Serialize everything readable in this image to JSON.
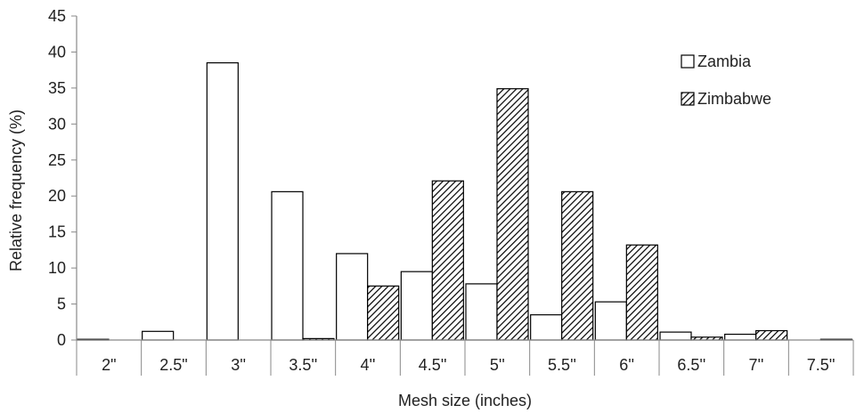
{
  "chart_data": {
    "type": "bar",
    "title": "",
    "xlabel": "Mesh size (inches)",
    "ylabel": "Relative frequency (%)",
    "categories": [
      "2\"",
      "2.5\"",
      "3''",
      "3.5''",
      "4''",
      "4.5''",
      "5''",
      "5.5''",
      "6''",
      "6.5''",
      "7''",
      "7.5''"
    ],
    "ylim": [
      0,
      45
    ],
    "yticks": [
      0,
      5,
      10,
      15,
      20,
      25,
      30,
      35,
      40,
      45
    ],
    "grid": false,
    "legend_position": "top-right",
    "series": [
      {
        "name": "Zambia",
        "pattern": "none",
        "color": "#ffffff",
        "values": [
          0.1,
          1.2,
          38.5,
          20.6,
          12.0,
          9.5,
          7.8,
          3.5,
          5.3,
          1.1,
          0.8,
          0.0
        ]
      },
      {
        "name": "Zimbabwe",
        "pattern": "diagonal-hatch",
        "color": "#000000",
        "values": [
          0.0,
          0.0,
          0.0,
          0.2,
          7.5,
          22.1,
          34.9,
          20.6,
          13.2,
          0.4,
          1.3,
          0.1
        ]
      }
    ]
  }
}
